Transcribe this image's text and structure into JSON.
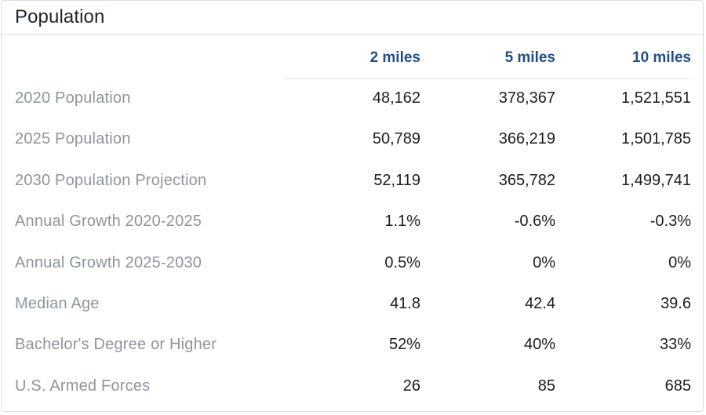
{
  "card": {
    "title": "Population"
  },
  "table": {
    "columns": [
      "2 miles",
      "5 miles",
      "10 miles"
    ],
    "rows": [
      {
        "label": "2020 Population",
        "values": [
          "48,162",
          "378,367",
          "1,521,551"
        ]
      },
      {
        "label": "2025 Population",
        "values": [
          "50,789",
          "366,219",
          "1,501,785"
        ]
      },
      {
        "label": "2030 Population Projection",
        "values": [
          "52,119",
          "365,782",
          "1,499,741"
        ]
      },
      {
        "label": "Annual Growth 2020-2025",
        "values": [
          "1.1%",
          "-0.6%",
          "-0.3%"
        ]
      },
      {
        "label": "Annual Growth 2025-2030",
        "values": [
          "0.5%",
          "0%",
          "0%"
        ]
      },
      {
        "label": "Median Age",
        "values": [
          "41.8",
          "42.4",
          "39.6"
        ]
      },
      {
        "label": "Bachelor's Degree or Higher",
        "values": [
          "52%",
          "40%",
          "33%"
        ]
      },
      {
        "label": "U.S. Armed Forces",
        "values": [
          "26",
          "85",
          "685"
        ]
      }
    ]
  },
  "colors": {
    "header_accent": "#1f4f86",
    "label_gray": "#8e959c",
    "value_text": "#1a1d21",
    "border": "#d9dde2"
  }
}
